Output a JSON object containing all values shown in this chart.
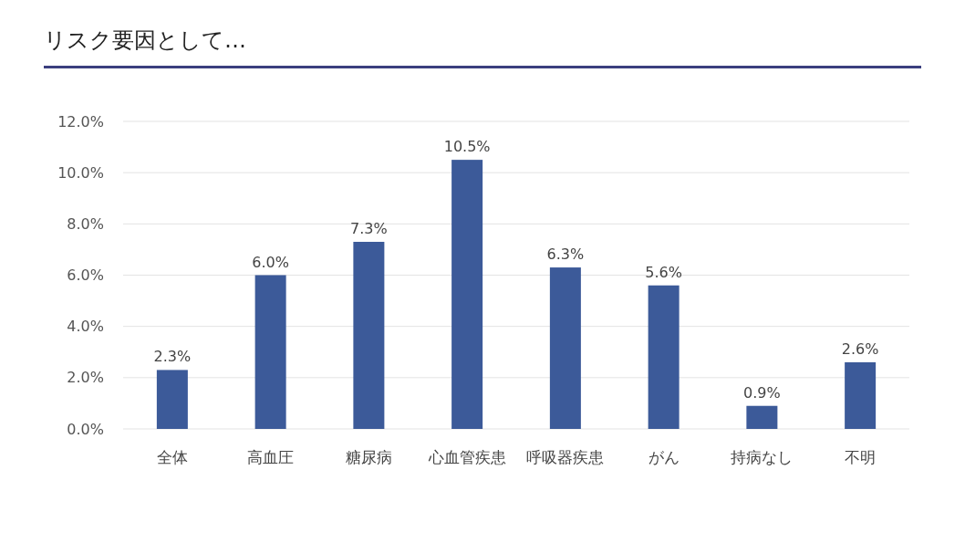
{
  "chart_data": {
    "type": "bar",
    "title": "リスク要因として…",
    "categories": [
      "全体",
      "高血圧",
      "糖尿病",
      "心血管疾患",
      "呼吸器疾患",
      "がん",
      "持病なし",
      "不明"
    ],
    "values": [
      2.3,
      6.0,
      7.3,
      10.5,
      6.3,
      5.6,
      0.9,
      2.6
    ],
    "value_labels": [
      "2.3%",
      "6.0%",
      "7.3%",
      "10.5%",
      "6.3%",
      "5.6%",
      "0.9%",
      "2.6%"
    ],
    "color": "#3c5a99",
    "ylim": [
      0,
      12
    ],
    "yticks": [
      {
        "value": 0,
        "label": "0.0%"
      },
      {
        "value": 2,
        "label": "2.0%"
      },
      {
        "value": 4,
        "label": "4.0%"
      },
      {
        "value": 6,
        "label": "6.0%"
      },
      {
        "value": 8,
        "label": "8.0%"
      },
      {
        "value": 10,
        "label": "10.0%"
      },
      {
        "value": 12,
        "label": "12.0%"
      }
    ],
    "grid": "y"
  }
}
